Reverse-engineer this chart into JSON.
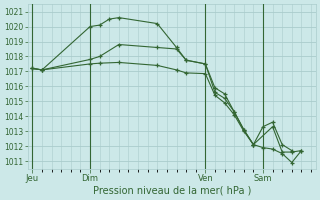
{
  "background_color": "#cce8e8",
  "grid_color": "#aacccc",
  "line_color": "#336633",
  "marker_color": "#336633",
  "xlabel": "Pression niveau de la mer( hPa )",
  "ylim": [
    1010.5,
    1021.5
  ],
  "yticks": [
    1011,
    1012,
    1013,
    1014,
    1015,
    1016,
    1017,
    1018,
    1019,
    1020,
    1021
  ],
  "day_labels": [
    "Jeu",
    "Dim",
    "Ven",
    "Sam"
  ],
  "day_positions": [
    0,
    24,
    72,
    96
  ],
  "xlim": [
    -2,
    118
  ],
  "series1": {
    "x": [
      0,
      4,
      24,
      28,
      32,
      36,
      52,
      60,
      64,
      72,
      76,
      80,
      84,
      88,
      92,
      96,
      100,
      104,
      108
    ],
    "y": [
      1017.2,
      1017.1,
      1020.0,
      1020.1,
      1020.5,
      1020.6,
      1020.2,
      1018.6,
      1017.75,
      1017.5,
      1015.9,
      1015.5,
      1014.3,
      1013.1,
      1012.1,
      1013.3,
      1013.6,
      1012.1,
      1011.7
    ]
  },
  "series2": {
    "x": [
      0,
      4,
      24,
      28,
      36,
      52,
      60,
      64,
      72,
      76,
      80,
      84,
      88,
      92,
      100,
      104,
      108,
      112
    ],
    "y": [
      1017.2,
      1017.1,
      1017.8,
      1018.0,
      1018.8,
      1018.6,
      1018.5,
      1017.75,
      1017.5,
      1015.6,
      1015.2,
      1014.3,
      1013.1,
      1012.1,
      1013.3,
      1011.6,
      1011.6,
      1011.7
    ]
  },
  "series3": {
    "x": [
      0,
      4,
      24,
      28,
      36,
      52,
      60,
      64,
      72,
      76,
      80,
      84,
      88,
      92,
      96,
      100,
      104,
      108,
      112
    ],
    "y": [
      1017.2,
      1017.1,
      1017.5,
      1017.55,
      1017.6,
      1017.4,
      1017.1,
      1016.9,
      1016.85,
      1015.4,
      1014.9,
      1014.1,
      1013.0,
      1012.1,
      1011.9,
      1011.8,
      1011.5,
      1010.9,
      1011.7
    ]
  }
}
